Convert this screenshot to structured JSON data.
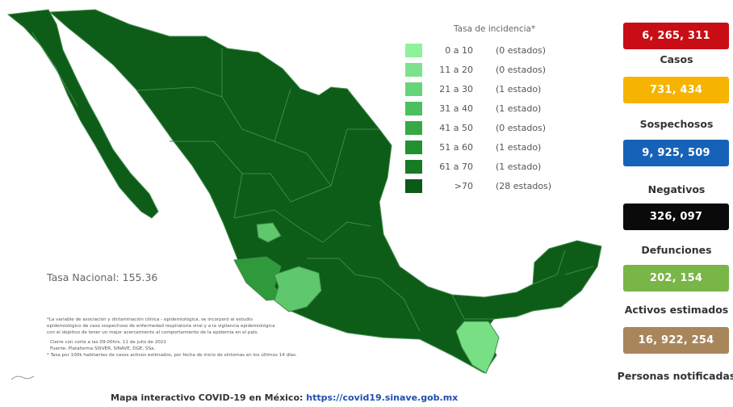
{
  "legend": {
    "title": "Tasa de incidencia*",
    "rows": [
      {
        "range": "0 a  10",
        "count": "(0 estados)",
        "color": "#8ef29c"
      },
      {
        "range": "11 a  20",
        "count": "(0 estados)",
        "color": "#7ee28c"
      },
      {
        "range": "21 a  30",
        "count": "(1 estado)",
        "color": "#66d479"
      },
      {
        "range": "31 a  40",
        "count": "(1 estado)",
        "color": "#4cc05e"
      },
      {
        "range": "41 a  50",
        "count": "(0 estados)",
        "color": "#36a944"
      },
      {
        "range": "51 a  60",
        "count": "(1 estado)",
        "color": "#239030"
      },
      {
        "range": "61 a  70",
        "count": "(1 estado)",
        "color": "#177a24"
      },
      {
        "range": ">70",
        "count": "(28 estados)",
        "color": "#0b5a17"
      }
    ]
  },
  "tasa_nacional": "Tasa Nacional: 155.36",
  "notes": [
    "*La variable de asociación y dictaminación clínica - epidemiológica, se incorporó al estudio",
    "epidemiológico de caso sospechoso de enfermedad respiratoria viral y a la vigilancia epidemiológica",
    "con el objetivo de tener un mejor acercamiento al comportamiento de la epidemia en el país.",
    "Cierre con corte a las 09:00hrs. 11 de julio de 2022",
    "Fuente: Plataforma SISVER, SINAVE, DGE, SSa.",
    "* Tasa por 100k habitantes de casos activos estimados, por fecha de inicio de síntomas en los últimos 14 días."
  ],
  "footer": {
    "text": "Mapa interactivo COVID-19 en México: ",
    "url": "https://covid19.sinave.gob.mx"
  },
  "stats": [
    {
      "value": "6, 265, 311",
      "label": "Casos",
      "color": "#c80d14"
    },
    {
      "value": "731, 434",
      "label": "Sospechosos",
      "color": "#f6b400"
    },
    {
      "value": "9, 925, 509",
      "label": "Negativos",
      "color": "#1662b8"
    },
    {
      "value": "326, 097",
      "label": "Defunciones",
      "color": "#0a0a0a"
    },
    {
      "value": "202, 154",
      "label": "Activos estimados",
      "color": "#7ab547"
    },
    {
      "value": "16, 922, 254",
      "label": "Personas notificadas",
      "color": "#a8865a"
    }
  ],
  "map_colors": {
    "dark": "#0d5c18",
    "border": "#3f8a4a",
    "medium": "#2f9a3c",
    "light": "#5fc76c",
    "lightest": "#78df84"
  }
}
